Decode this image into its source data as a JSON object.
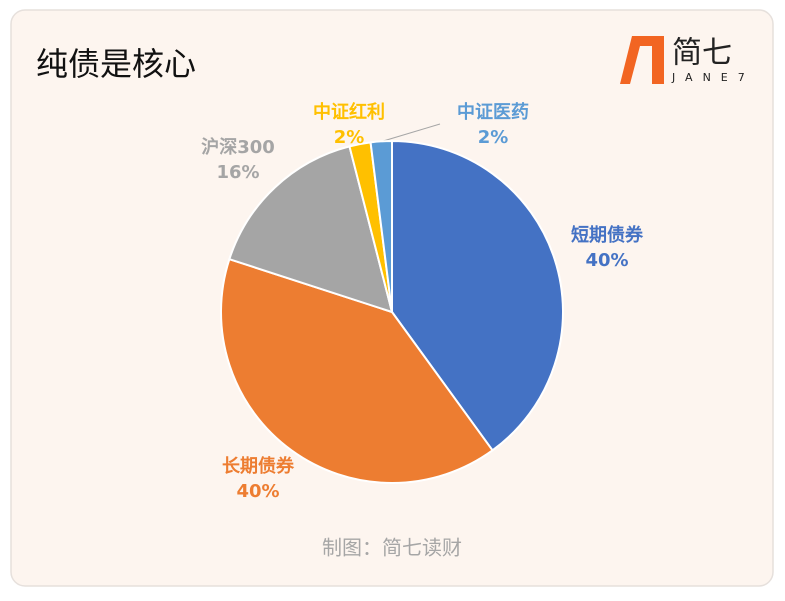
{
  "chart_data": {
    "type": "pie",
    "title": "纯债是核心",
    "source": "制图：简七读财",
    "logo": "简七",
    "logo_sub": "JANE7",
    "categories": [
      "短期债券",
      "长期债券",
      "沪深300",
      "中证红利",
      "中证医药"
    ],
    "values": [
      40,
      40,
      16,
      2,
      2
    ],
    "value_labels": [
      "40%",
      "40%",
      "16%",
      "2%",
      "2%"
    ],
    "colors": [
      "#4472c4",
      "#ed7d31",
      "#a5a5a5",
      "#ffc000",
      "#5b9bd5"
    ],
    "start_angle": 0,
    "direction": "clockwise"
  }
}
